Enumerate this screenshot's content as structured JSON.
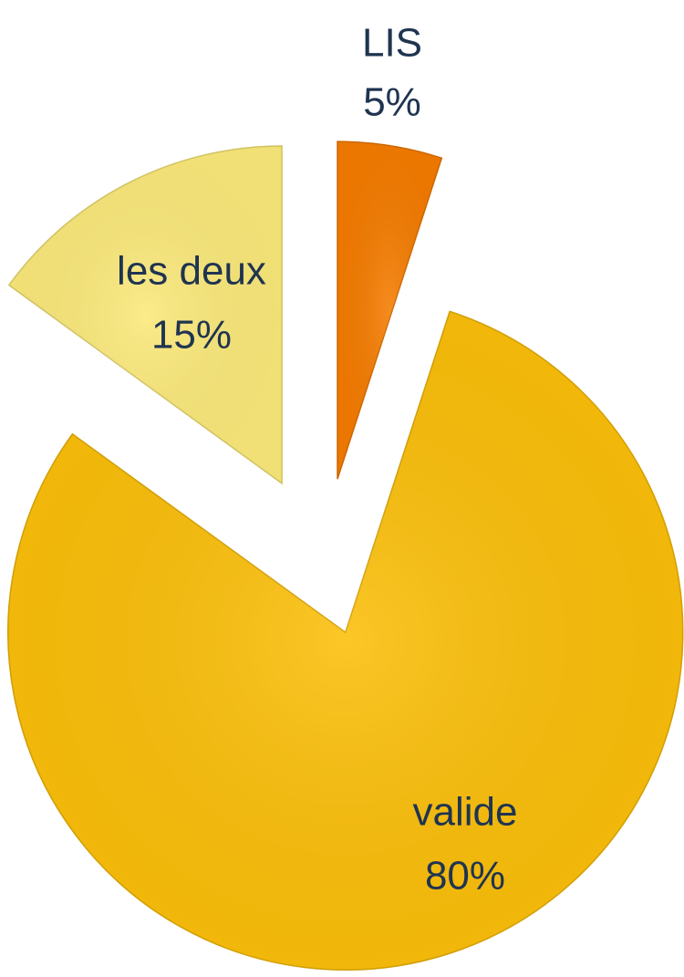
{
  "chart_data": {
    "type": "pie",
    "categories": [
      "LIS",
      "valide",
      "les deux"
    ],
    "values": [
      5,
      80,
      15
    ],
    "value_labels": [
      "5%",
      "80%",
      "15%"
    ],
    "colors": [
      "#f57c00",
      "#fbbf0a",
      "#fbe97a"
    ]
  }
}
